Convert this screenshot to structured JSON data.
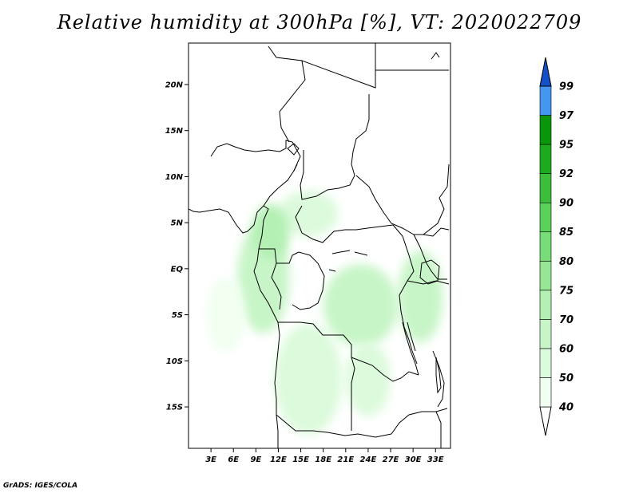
{
  "title": "Relative humidity at 300hPa [%], VT: 2020022709",
  "credit": "GrADS: IGES/COLA",
  "map": {
    "lon_range": [
      0,
      35
    ],
    "lat_range": [
      -19.5,
      24.5
    ],
    "lat_ticks": [
      {
        "value": 20,
        "label": "20N"
      },
      {
        "value": 15,
        "label": "15N"
      },
      {
        "value": 10,
        "label": "10N"
      },
      {
        "value": 5,
        "label": "5N"
      },
      {
        "value": 0,
        "label": "EQ"
      },
      {
        "value": -5,
        "label": "5S"
      },
      {
        "value": -10,
        "label": "10S"
      },
      {
        "value": -15,
        "label": "15S"
      }
    ],
    "lon_ticks": [
      {
        "value": 3,
        "label": "3E"
      },
      {
        "value": 6,
        "label": "6E"
      },
      {
        "value": 9,
        "label": "9E"
      },
      {
        "value": 12,
        "label": "12E"
      },
      {
        "value": 15,
        "label": "15E"
      },
      {
        "value": 18,
        "label": "18E"
      },
      {
        "value": 21,
        "label": "21E"
      },
      {
        "value": 24,
        "label": "24E"
      },
      {
        "value": 27,
        "label": "27E"
      },
      {
        "value": 30,
        "label": "30E"
      },
      {
        "value": 33,
        "label": "33E"
      }
    ]
  },
  "colorbar": {
    "levels": [
      {
        "label": "40",
        "color": "#f0fff0"
      },
      {
        "label": "50",
        "color": "#dcfadc"
      },
      {
        "label": "60",
        "color": "#c8f5c8"
      },
      {
        "label": "70",
        "color": "#b4f0b4"
      },
      {
        "label": "75",
        "color": "#96e696"
      },
      {
        "label": "80",
        "color": "#78dc78"
      },
      {
        "label": "85",
        "color": "#5ad25a"
      },
      {
        "label": "90",
        "color": "#3cbe3c"
      },
      {
        "label": "92",
        "color": "#1eaa1e"
      },
      {
        "label": "95",
        "color": "#0a960a"
      },
      {
        "label": "97",
        "color": "#4696f0"
      },
      {
        "label": "99",
        "color": "#1e6ee6"
      }
    ],
    "top_color": "#1450c8",
    "bottom_color": "#ffffff"
  },
  "humidity_regions": [
    {
      "name": "gabon-congo-coast",
      "lon": 10,
      "lat": -1,
      "rx": 3.5,
      "ry": 6,
      "level": "60"
    },
    {
      "name": "angola-plateau",
      "lon": 16,
      "lat": -12,
      "rx": 4.5,
      "ry": 6,
      "level": "50"
    },
    {
      "name": "congo-basin-central",
      "lon": 23,
      "lat": -4,
      "rx": 5,
      "ry": 4.5,
      "level": "60"
    },
    {
      "name": "great-lakes",
      "lon": 31,
      "lat": -3,
      "rx": 3,
      "ry": 5,
      "level": "60"
    },
    {
      "name": "car-north",
      "lon": 16,
      "lat": 6,
      "rx": 4,
      "ry": 2.5,
      "level": "50"
    },
    {
      "name": "cameroon-highlands",
      "lon": 11,
      "lat": 4,
      "rx": 2.5,
      "ry": 3,
      "level": "70"
    },
    {
      "name": "zambia-west",
      "lon": 24,
      "lat": -12,
      "rx": 3,
      "ry": 4,
      "level": "50"
    },
    {
      "name": "atlantic-offshore",
      "lon": 5,
      "lat": -5,
      "rx": 2.5,
      "ry": 4,
      "level": "40"
    }
  ]
}
